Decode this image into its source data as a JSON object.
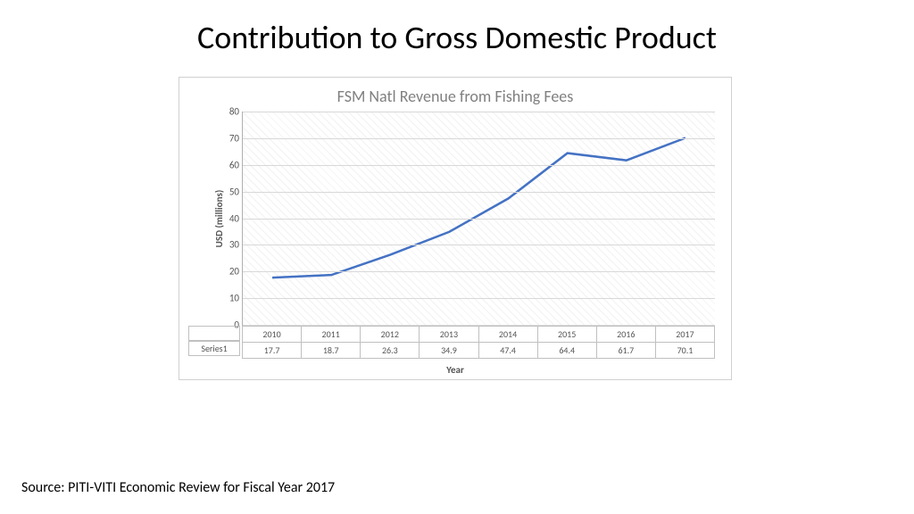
{
  "slide": {
    "title": "Contribution to Gross Domestic Product",
    "source": "Source: PITI-VITI Economic Review for Fiscal Year 2017"
  },
  "chart": {
    "type": "line",
    "title": "FSM Natl Revenue from Fishing Fees",
    "ylabel": "USD (millions)",
    "xlabel": "Year",
    "series_name": "Series1",
    "categories": [
      "2010",
      "2011",
      "2012",
      "2013",
      "2014",
      "2015",
      "2016",
      "2017"
    ],
    "values": [
      17.7,
      18.7,
      26.3,
      34.9,
      47.4,
      64.4,
      61.7,
      70.1
    ],
    "ylim": [
      0,
      80
    ],
    "ytick_step": 10,
    "line_color": "#4472c4",
    "line_width": 2.5,
    "grid_color": "#d8d8d8",
    "background_color": "#ffffff",
    "title_color": "#808080",
    "title_fontsize": 18,
    "axis_label_fontsize": 11,
    "tick_fontsize": 11,
    "table_fontsize": 10
  }
}
